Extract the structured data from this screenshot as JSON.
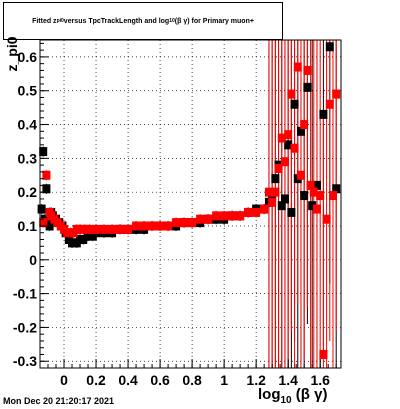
{
  "title": {
    "prefix": "Fitted  z",
    "sub1": "pi0",
    "middle": "  versus TpcTrackLength and log",
    "sub2": "10",
    "suffix": "(β γ) for Primary muon+"
  },
  "ylabel": "z_pi0",
  "xlabel": {
    "main": "log",
    "sub": "10",
    "tail": "(β γ)"
  },
  "datestamp": "Mon Dec 20 21:20:17 2021",
  "colors": {
    "series1": "#000000",
    "series2": "#ff0000",
    "grid": "#000000"
  },
  "chart_data": {
    "type": "scatter",
    "title": "Fitted z_pi0 versus TpcTrackLength and log10(βγ) for Primary muon+",
    "xlabel": "log10(β γ)",
    "ylabel": "z_pi0",
    "xlim": [
      -0.15,
      1.73
    ],
    "ylim": [
      -0.32,
      0.65
    ],
    "x_ticks": [
      0,
      0.2,
      0.4,
      0.6,
      0.8,
      1,
      1.2,
      1.4,
      1.6
    ],
    "x_tick_labels": [
      "0",
      "0.2",
      "0.4",
      "0.6",
      "0.8",
      "1",
      "1.2",
      "1.4",
      "1.6"
    ],
    "y_ticks": [
      -0.3,
      -0.2,
      -0.1,
      0,
      0.1,
      0.2,
      0.3,
      0.4,
      0.5,
      0.6
    ],
    "y_tick_labels": [
      "-0.3",
      "-0.2",
      "-0.1",
      "0",
      "0.1",
      "0.2",
      "0.3",
      "0.4",
      "0.5",
      "0.6"
    ],
    "grid": true,
    "series": [
      {
        "color": "#000000",
        "x": [
          -0.14,
          -0.13,
          -0.12,
          -0.11,
          -0.1,
          -0.09,
          -0.08,
          -0.07,
          -0.06,
          -0.05,
          -0.03,
          -0.01,
          0.01,
          0.03,
          0.05,
          0.08,
          0.1,
          0.12,
          0.15,
          0.18,
          0.2,
          0.25,
          0.3,
          0.35,
          0.4,
          0.45,
          0.5,
          0.55,
          0.6,
          0.65,
          0.7,
          0.75,
          0.8,
          0.85,
          0.9,
          0.95,
          1.0,
          1.05,
          1.1,
          1.15,
          1.2,
          1.25,
          1.28,
          1.3,
          1.32,
          1.34,
          1.36,
          1.38,
          1.4,
          1.42,
          1.44,
          1.46,
          1.48,
          1.5,
          1.52,
          1.55,
          1.58,
          1.62,
          1.66,
          1.7
        ],
        "y": [
          0.15,
          0.32,
          0.12,
          0.21,
          0.11,
          0.1,
          0.14,
          0.13,
          0.12,
          0.12,
          0.11,
          0.1,
          0.08,
          0.06,
          0.05,
          0.05,
          0.06,
          0.06,
          0.07,
          0.07,
          0.08,
          0.08,
          0.08,
          0.09,
          0.09,
          0.09,
          0.09,
          0.1,
          0.1,
          0.1,
          0.1,
          0.11,
          0.11,
          0.11,
          0.12,
          0.12,
          0.12,
          0.13,
          0.13,
          0.14,
          0.15,
          0.15,
          0.17,
          0.19,
          0.24,
          0.28,
          0.16,
          0.18,
          0.34,
          0.14,
          0.46,
          0.24,
          0.38,
          0.19,
          0.51,
          0.16,
          0.22,
          0.43,
          0.63,
          0.21
        ]
      },
      {
        "color": "#ff0000",
        "x": [
          -0.13,
          -0.11,
          -0.09,
          -0.08,
          -0.06,
          -0.04,
          -0.02,
          0.0,
          0.02,
          0.04,
          0.06,
          0.08,
          0.1,
          0.13,
          0.16,
          0.2,
          0.25,
          0.3,
          0.35,
          0.4,
          0.45,
          0.5,
          0.55,
          0.6,
          0.65,
          0.7,
          0.75,
          0.8,
          0.85,
          0.9,
          0.95,
          1.0,
          1.05,
          1.1,
          1.15,
          1.2,
          1.25,
          1.28,
          1.3,
          1.32,
          1.34,
          1.36,
          1.38,
          1.4,
          1.42,
          1.44,
          1.46,
          1.48,
          1.5,
          1.52,
          1.54,
          1.56,
          1.58,
          1.6,
          1.62,
          1.64,
          1.66,
          1.68,
          1.7
        ],
        "y": [
          0.11,
          0.25,
          0.14,
          0.13,
          0.12,
          0.11,
          0.1,
          0.09,
          0.08,
          0.08,
          0.08,
          0.09,
          0.09,
          0.09,
          0.09,
          0.09,
          0.09,
          0.09,
          0.09,
          0.09,
          0.1,
          0.1,
          0.1,
          0.1,
          0.1,
          0.11,
          0.11,
          0.11,
          0.12,
          0.12,
          0.13,
          0.13,
          0.13,
          0.13,
          0.14,
          0.14,
          0.15,
          0.2,
          0.17,
          0.2,
          0.27,
          0.36,
          0.29,
          0.37,
          0.49,
          0.33,
          0.57,
          0.25,
          0.4,
          0.56,
          0.22,
          0.2,
          0.15,
          0.19,
          -0.28,
          0.12,
          0.46,
          0.19,
          0.49
        ]
      }
    ]
  }
}
